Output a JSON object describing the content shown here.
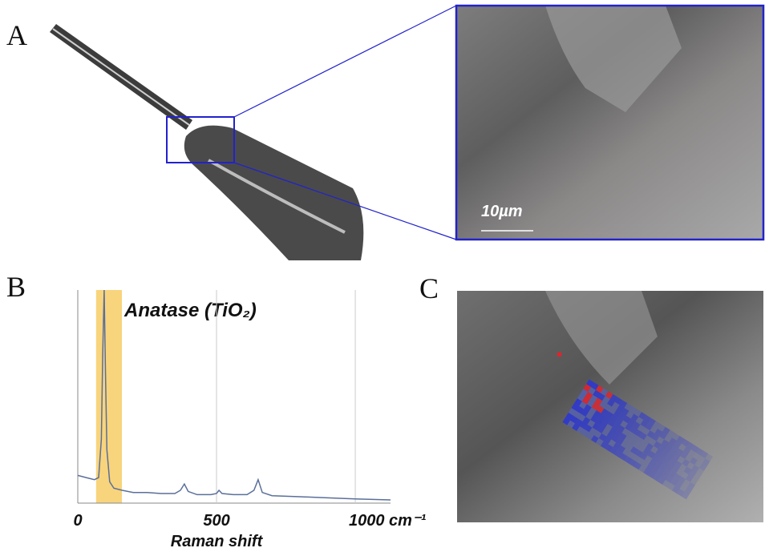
{
  "panel_labels": [
    "A",
    "B",
    "C"
  ],
  "scale_bar": "10µm",
  "chart_data": {
    "type": "line",
    "annotation": "Anatase (TiO₂)",
    "x_label": "Raman shift",
    "x": [
      0,
      30,
      60,
      75,
      85,
      90,
      95,
      100,
      105,
      115,
      130,
      160,
      200,
      250,
      300,
      350,
      370,
      384,
      398,
      430,
      480,
      500,
      509,
      520,
      560,
      610,
      635,
      650,
      665,
      700,
      800,
      900,
      1000,
      1127
    ],
    "values": [
      13,
      12,
      11,
      12,
      30,
      70,
      100,
      60,
      25,
      10,
      7,
      6,
      5,
      5,
      4.5,
      4.5,
      6,
      9,
      5.5,
      4,
      4,
      4.5,
      6,
      4.5,
      4,
      4,
      6,
      11,
      5,
      3.5,
      3,
      2.5,
      2,
      1.5
    ],
    "color": "#5a6f9a",
    "highlight": [
      66,
      159
    ],
    "highlight_color": "#f8d47c",
    "xlim": [
      0,
      1127
    ],
    "ylim": [
      0,
      100
    ],
    "xticks": [
      0,
      500,
      {
        "value": 1000,
        "label": "1000 cm⁻¹"
      }
    ],
    "grid": true
  }
}
